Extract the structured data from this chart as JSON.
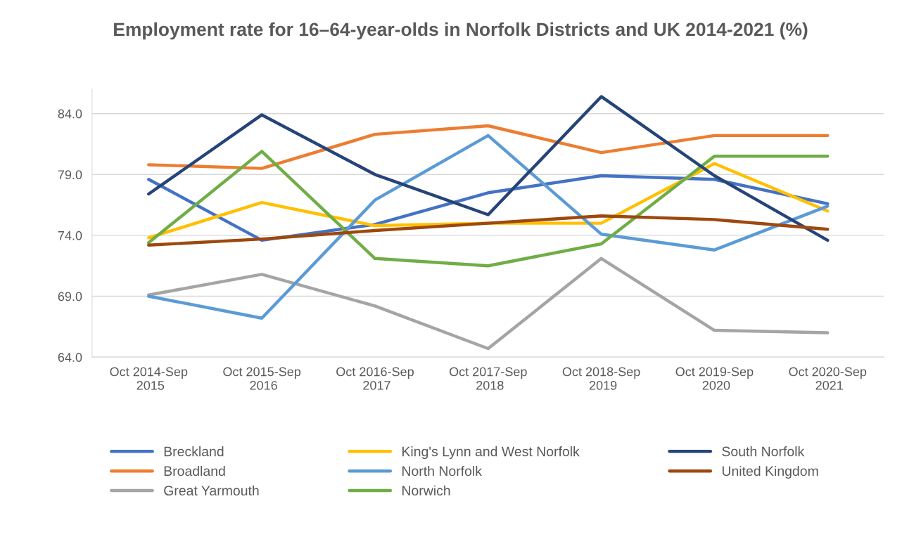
{
  "chart_data": {
    "type": "line",
    "title": "Employment rate for 16–64-year-olds in Norfolk Districts and UK 2014-2021 (%)",
    "categories": [
      "Oct 2014-Sep 2015",
      "Oct 2015-Sep 2016",
      "Oct 2016-Sep 2017",
      "Oct 2017-Sep 2018",
      "Oct 2018-Sep 2019",
      "Oct 2019-Sep 2020",
      "Oct 2020-Sep 2021"
    ],
    "series": [
      {
        "name": "Breckland",
        "color": "#4472c4",
        "values": [
          78.6,
          73.6,
          74.9,
          77.5,
          78.9,
          78.6,
          76.6
        ]
      },
      {
        "name": "Broadland",
        "color": "#ed7d31",
        "values": [
          79.8,
          79.5,
          82.3,
          83.0,
          80.8,
          82.2,
          82.2
        ]
      },
      {
        "name": "Great Yarmouth",
        "color": "#a5a5a5",
        "values": [
          69.1,
          70.8,
          68.2,
          64.7,
          72.1,
          66.2,
          66.0
        ]
      },
      {
        "name": "King's Lynn and West Norfolk",
        "color": "#ffc000",
        "values": [
          73.8,
          76.7,
          74.8,
          75.0,
          75.0,
          79.9,
          76.0
        ]
      },
      {
        "name": "North Norfolk",
        "color": "#5b9bd5",
        "values": [
          69.0,
          67.2,
          76.9,
          82.2,
          74.1,
          72.8,
          76.4
        ]
      },
      {
        "name": "Norwich",
        "color": "#70ad47",
        "values": [
          73.4,
          80.9,
          72.1,
          71.5,
          73.3,
          80.5,
          80.5
        ]
      },
      {
        "name": "South Norfolk",
        "color": "#264478",
        "values": [
          77.4,
          83.9,
          79.0,
          75.7,
          85.4,
          78.9,
          73.6
        ]
      },
      {
        "name": "United Kingdom",
        "color": "#9e480e",
        "values": [
          73.2,
          73.7,
          74.4,
          75.0,
          75.6,
          75.3,
          74.5
        ]
      }
    ],
    "ylim": [
      64,
      86
    ],
    "yticks": [
      {
        "value": 64,
        "label": "64.0"
      },
      {
        "value": 69,
        "label": "69.0"
      },
      {
        "value": 74,
        "label": "74.0"
      },
      {
        "value": 79,
        "label": "79.0"
      },
      {
        "value": 84,
        "label": "84.0"
      }
    ],
    "grid": "y",
    "legend": "bottom",
    "marker": "none",
    "line_style": "solid"
  }
}
